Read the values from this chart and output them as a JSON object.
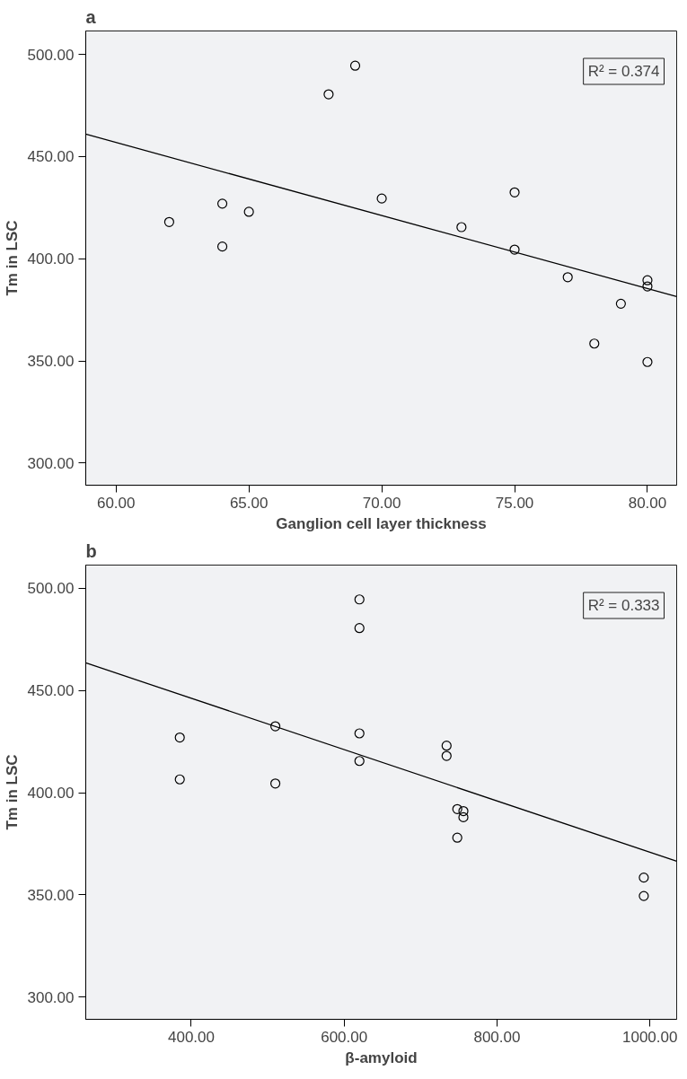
{
  "chart_data": [
    {
      "type": "scatter",
      "title": "a",
      "xlabel": "Ganglion cell layer thickness",
      "ylabel": "Tm in LSC",
      "grid": false,
      "xlim": [
        58.86,
        81.1
      ],
      "ylim": [
        289.2,
        511.5
      ],
      "xticks": [
        {
          "value": 60,
          "label": "60.00"
        },
        {
          "value": 65,
          "label": "65.00"
        },
        {
          "value": 70,
          "label": "70.00"
        },
        {
          "value": 75,
          "label": "75.00"
        },
        {
          "value": 80,
          "label": "80.00"
        }
      ],
      "yticks": [
        {
          "value": 300,
          "label": "300.00"
        },
        {
          "value": 350,
          "label": "350.00"
        },
        {
          "value": 400,
          "label": "400.00"
        },
        {
          "value": 450,
          "label": "450.00"
        },
        {
          "value": 500,
          "label": "500.00"
        }
      ],
      "annotations": [
        "R² = 0.374"
      ],
      "series": [
        {
          "type": "scatter",
          "marker": "circle",
          "color": "#000000",
          "x": [
            62,
            64,
            64,
            65,
            68,
            69,
            70,
            73,
            75,
            75,
            77,
            80,
            80,
            79,
            78,
            80
          ],
          "values": [
            418,
            427,
            406,
            423,
            480.5,
            494.5,
            429.5,
            415.5,
            432.5,
            404.5,
            391,
            389.5,
            386.5,
            378,
            358.5,
            349.5
          ]
        },
        {
          "type": "line",
          "color": "#000000",
          "x": [
            58.86,
            81.1
          ],
          "values": [
            461,
            381.5
          ]
        }
      ]
    },
    {
      "type": "scatter",
      "title": "b",
      "xlabel": "β-amyloid",
      "ylabel": "Tm in LSC",
      "grid": false,
      "xlim": [
        262,
        1035
      ],
      "ylim": [
        289.2,
        511.3
      ],
      "xticks": [
        {
          "value": 400,
          "label": "400.00"
        },
        {
          "value": 600,
          "label": "600.00"
        },
        {
          "value": 800,
          "label": "800.00"
        },
        {
          "value": 1000,
          "label": "1000.00"
        }
      ],
      "yticks": [
        {
          "value": 300,
          "label": "300.00"
        },
        {
          "value": 350,
          "label": "350.00"
        },
        {
          "value": 400,
          "label": "400.00"
        },
        {
          "value": 450,
          "label": "450.00"
        },
        {
          "value": 500,
          "label": "500.00"
        }
      ],
      "annotations": [
        "R² = 0.333"
      ],
      "series": [
        {
          "type": "scatter",
          "marker": "circle",
          "color": "#000000",
          "x": [
            385,
            385,
            510,
            510,
            620,
            620,
            620,
            620,
            734,
            734,
            748,
            756,
            756,
            748,
            992,
            992
          ],
          "values": [
            427,
            406.5,
            432.5,
            404.5,
            494.5,
            480.5,
            429,
            415.5,
            423,
            418,
            392,
            391,
            388,
            378,
            358.5,
            349.5
          ]
        },
        {
          "type": "line",
          "color": "#000000",
          "x": [
            262,
            1035
          ],
          "values": [
            463.5,
            366.5
          ]
        }
      ]
    }
  ]
}
